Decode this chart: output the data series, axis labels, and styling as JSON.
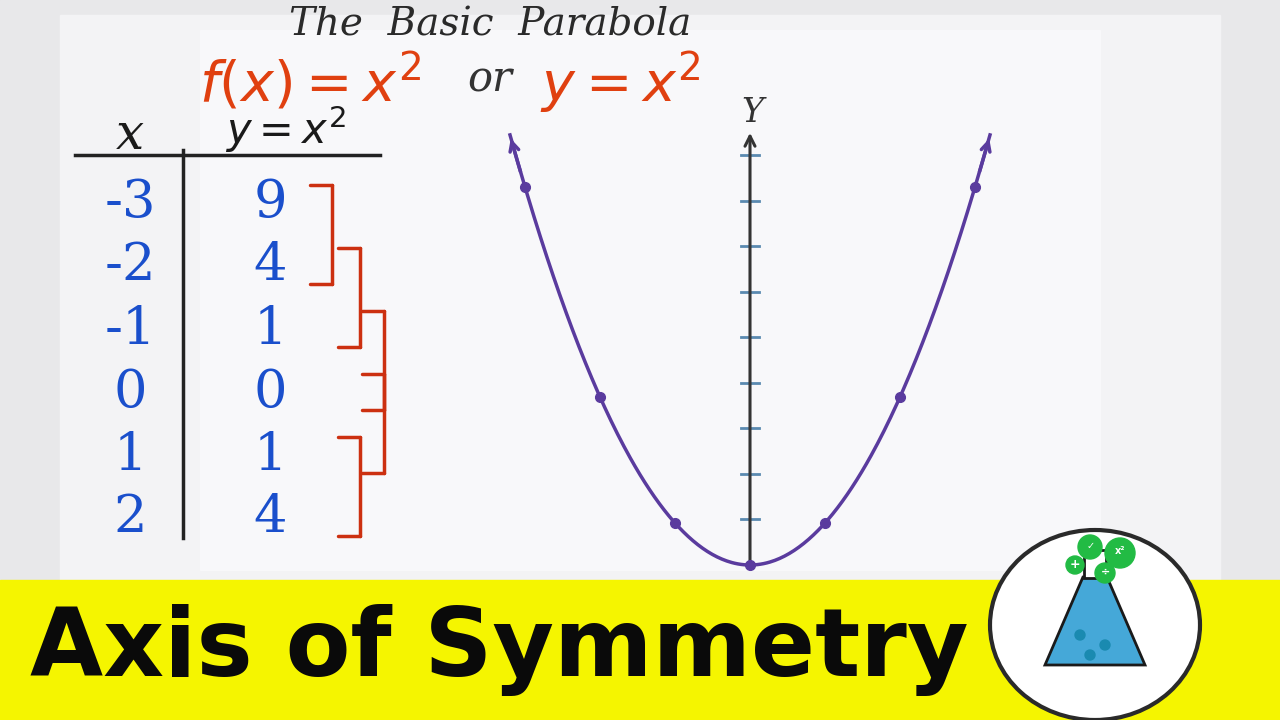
{
  "bg_color": "#d8d8dc",
  "whiteboard_color": "#f0f0f2",
  "yellow_bar_color": "#f5f500",
  "yellow_bar_text": "Axis of Symmetry",
  "yellow_bar_text_color": "#0a0a0a",
  "title_text": "The  Basic  Parabola",
  "title_color": "#2a2a2a",
  "formula_color": "#e04010",
  "table_color_x": "#1a4fcc",
  "table_color_y": "#1a4fcc",
  "table_header_color": "#1a1a1a",
  "parabola_color": "#5a3b9e",
  "axis_color": "#333333",
  "tick_color": "#5a8ab0",
  "bracket_color": "#cc3010",
  "table_x_vals": [
    "-3",
    "-2",
    "-1",
    "0",
    "1",
    "2"
  ],
  "table_y_vals": [
    "9",
    "4",
    "1",
    "0",
    "1",
    "4"
  ]
}
